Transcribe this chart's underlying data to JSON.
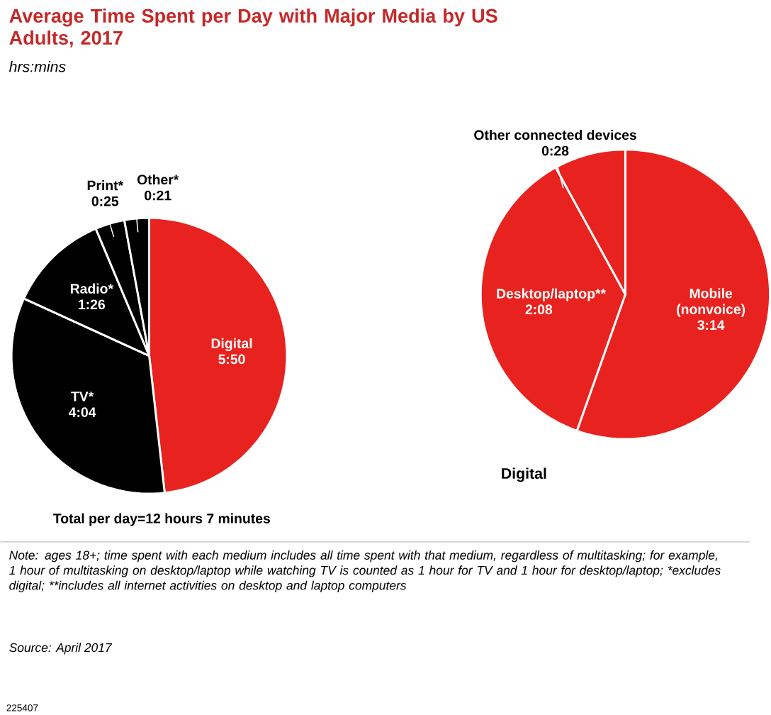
{
  "chart_data": [
    {
      "type": "pie",
      "title": "Average Time Spent per Day with Major Media by US Adults, 2017",
      "subtitle": "hrs:mins",
      "categories": [
        "Digital",
        "TV*",
        "Radio*",
        "Print*",
        "Other*"
      ],
      "values": [
        350,
        244,
        86,
        25,
        21
      ],
      "value_labels": [
        "5:50",
        "4:04",
        "1:26",
        "0:25",
        "0:21"
      ],
      "colors": [
        "#e8231f",
        "#000000",
        "#000000",
        "#000000",
        "#000000"
      ],
      "annotations": [
        "Total per day=12 hours 7 minutes",
        "Note: ages 18+; time spent with each medium includes all time spent with that medium, regardless of multitasking; for example, 1 hour of multitasking on desktop/laptop while watching TV is counted as 1 hour for TV and 1 hour for desktop/laptop; *excludes digital; **includes all internet activities on desktop and laptop computers",
        "Source: April 2017",
        "225407"
      ]
    },
    {
      "type": "pie",
      "title": "Digital",
      "categories": [
        "Mobile (nonvoice)",
        "Desktop/laptop**",
        "Other connected devices"
      ],
      "values": [
        194,
        128,
        28
      ],
      "value_labels": [
        "3:14",
        "2:08",
        "0:28"
      ],
      "colors": [
        "#e8231f",
        "#e8231f",
        "#e8231f"
      ]
    }
  ]
}
